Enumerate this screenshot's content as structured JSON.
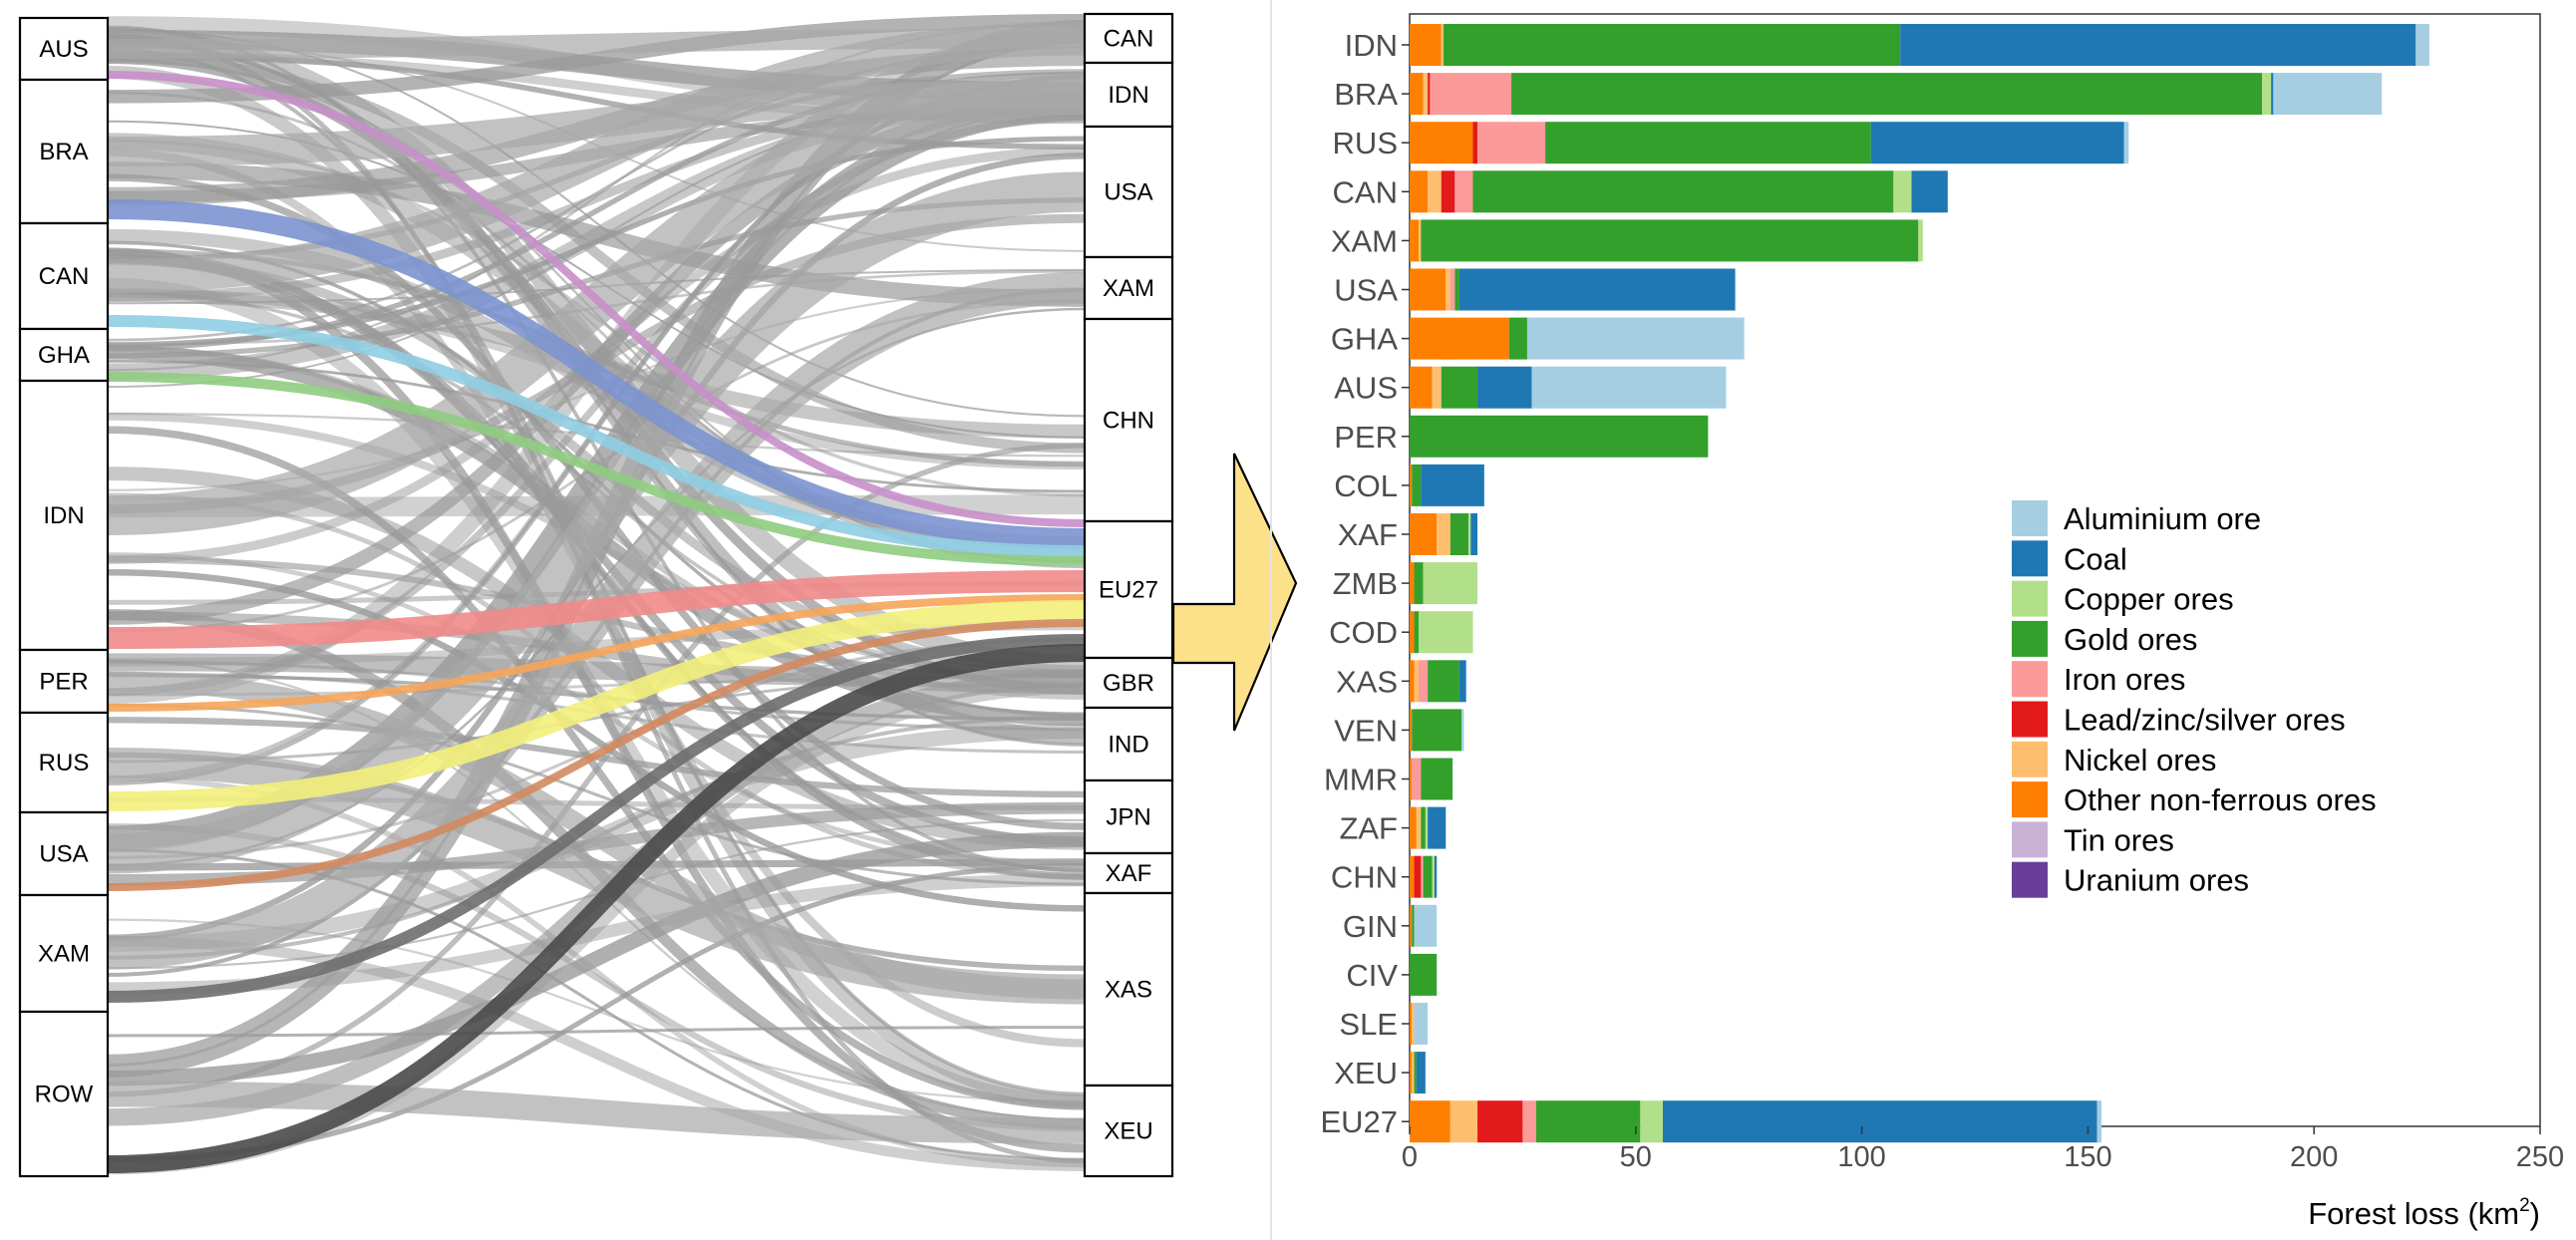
{
  "chart_data": [
    {
      "type": "sankey",
      "source_nodes": [
        "AUS",
        "BRA",
        "CAN",
        "GHA",
        "IDN",
        "PER",
        "RUS",
        "USA",
        "XAM",
        "ROW"
      ],
      "target_nodes": [
        "CAN",
        "IDN",
        "USA",
        "XAM",
        "CHN",
        "EU27",
        "GBR",
        "IND",
        "JPN",
        "XAF",
        "XAS",
        "XEU"
      ],
      "highlighted_flows": [
        {
          "source": "BRA",
          "target": "EU27",
          "color": "#c78fc9"
        },
        {
          "source": "CAN",
          "target": "EU27",
          "color": "#7b93cf"
        },
        {
          "source": "GHA",
          "target": "EU27",
          "color": "#8fcde3"
        },
        {
          "source": "GHA",
          "target": "EU27",
          "color": "#8fcc7f"
        },
        {
          "source": "IDN",
          "target": "EU27",
          "color": "#f08a8a"
        },
        {
          "source": "PER",
          "target": "EU27",
          "color": "#f5a55a"
        },
        {
          "source": "RUS",
          "target": "EU27",
          "color": "#f2ef7a"
        },
        {
          "source": "USA",
          "target": "EU27",
          "color": "#d28a5e"
        },
        {
          "source": "XAM",
          "target": "EU27",
          "color": "#6e6e6e"
        },
        {
          "source": "ROW",
          "target": "EU27",
          "color": "#4a4a4a"
        }
      ]
    },
    {
      "type": "bar",
      "orientation": "horizontal",
      "stacked": true,
      "categories": [
        "IDN",
        "BRA",
        "RUS",
        "CAN",
        "XAM",
        "USA",
        "GHA",
        "AUS",
        "PER",
        "COL",
        "XAF",
        "ZMB",
        "COD",
        "XAS",
        "VEN",
        "MMR",
        "ZAF",
        "CHN",
        "GIN",
        "CIV",
        "SLE",
        "XEU",
        "EU27"
      ],
      "series": [
        {
          "name": "Aluminium ore",
          "color": "#a6cee3",
          "values": [
            3,
            24,
            1,
            0,
            0,
            0,
            48,
            43,
            0,
            0,
            0,
            0,
            0,
            0,
            0.5,
            0,
            0,
            0,
            5,
            0,
            3,
            0,
            1
          ]
        },
        {
          "name": "Coal",
          "color": "#1f78b4",
          "values": [
            114,
            0.5,
            56,
            8,
            0,
            61,
            0,
            12,
            0,
            14,
            1.5,
            0,
            0,
            1.5,
            0,
            0,
            4,
            0.5,
            0,
            0,
            0,
            2,
            96
          ]
        },
        {
          "name": "Copper ores",
          "color": "#b2df8a",
          "values": [
            0,
            2,
            0,
            4,
            1,
            0,
            0,
            0,
            0,
            0,
            0.5,
            12,
            12,
            0,
            0,
            0,
            0.5,
            0.5,
            0,
            0,
            0,
            0,
            5
          ]
        },
        {
          "name": "Gold ores",
          "color": "#33a02c",
          "values": [
            101,
            166,
            72,
            93,
            110,
            1,
            4,
            8,
            66,
            2,
            4,
            2,
            1,
            7,
            11,
            7,
            1,
            2,
            0.5,
            6,
            0,
            0.5,
            23
          ]
        },
        {
          "name": "Iron ores",
          "color": "#fb9a99",
          "values": [
            0,
            18,
            15,
            4,
            0,
            1,
            0,
            0,
            0,
            0,
            0,
            0,
            0,
            2,
            0,
            2,
            0,
            0.5,
            0,
            0,
            0,
            0,
            3
          ]
        },
        {
          "name": "Lead/zinc/silver ores",
          "color": "#e31a1c",
          "values": [
            0,
            0.5,
            1,
            3,
            0,
            0,
            0,
            0,
            0,
            0,
            0,
            0,
            0,
            0,
            0,
            0,
            0,
            1.5,
            0,
            0,
            0,
            0,
            10
          ]
        },
        {
          "name": "Nickel ores",
          "color": "#fdbf6f",
          "values": [
            0.5,
            1,
            0,
            3,
            0.5,
            1,
            0,
            2,
            0,
            0,
            3,
            0,
            0,
            1,
            0,
            0,
            1,
            0,
            0,
            0,
            0.5,
            0.5,
            6
          ]
        },
        {
          "name": "Other non-ferrous ores",
          "color": "#ff7f00",
          "values": [
            7,
            3,
            14,
            4,
            2,
            8,
            22,
            5,
            0,
            0.5,
            6,
            1,
            1,
            1,
            0.5,
            0.5,
            1.5,
            1,
            0.5,
            0,
            0.5,
            0.5,
            9
          ]
        },
        {
          "name": "Tin ores",
          "color": "#cab2d6",
          "values": [
            0,
            0,
            0,
            0,
            0,
            0,
            0,
            0,
            0,
            0,
            0,
            0,
            0,
            0,
            0,
            0,
            0,
            0,
            0,
            0,
            0,
            0,
            0
          ]
        },
        {
          "name": "Uranium ores",
          "color": "#6a3d9a",
          "values": [
            0,
            0,
            0,
            0,
            0,
            0,
            0,
            0,
            0,
            0,
            0,
            0,
            0,
            0,
            0,
            0,
            0,
            0,
            0,
            0,
            0,
            0,
            0
          ]
        }
      ],
      "stack_order": [
        "Other non-ferrous ores",
        "Nickel ores",
        "Lead/zinc/silver ores",
        "Iron ores",
        "Gold ores",
        "Copper ores",
        "Coal",
        "Aluminium ore",
        "Tin ores",
        "Uranium ores"
      ],
      "xlabel_prefix": "Forest loss (km",
      "xlabel_sup": "2",
      "xlabel_suffix": ")",
      "ylabel": "",
      "xlim": [
        0,
        250
      ],
      "xticks": [
        0,
        50,
        100,
        150,
        200,
        250
      ],
      "grid": false,
      "legend_position": "right-inside"
    }
  ]
}
